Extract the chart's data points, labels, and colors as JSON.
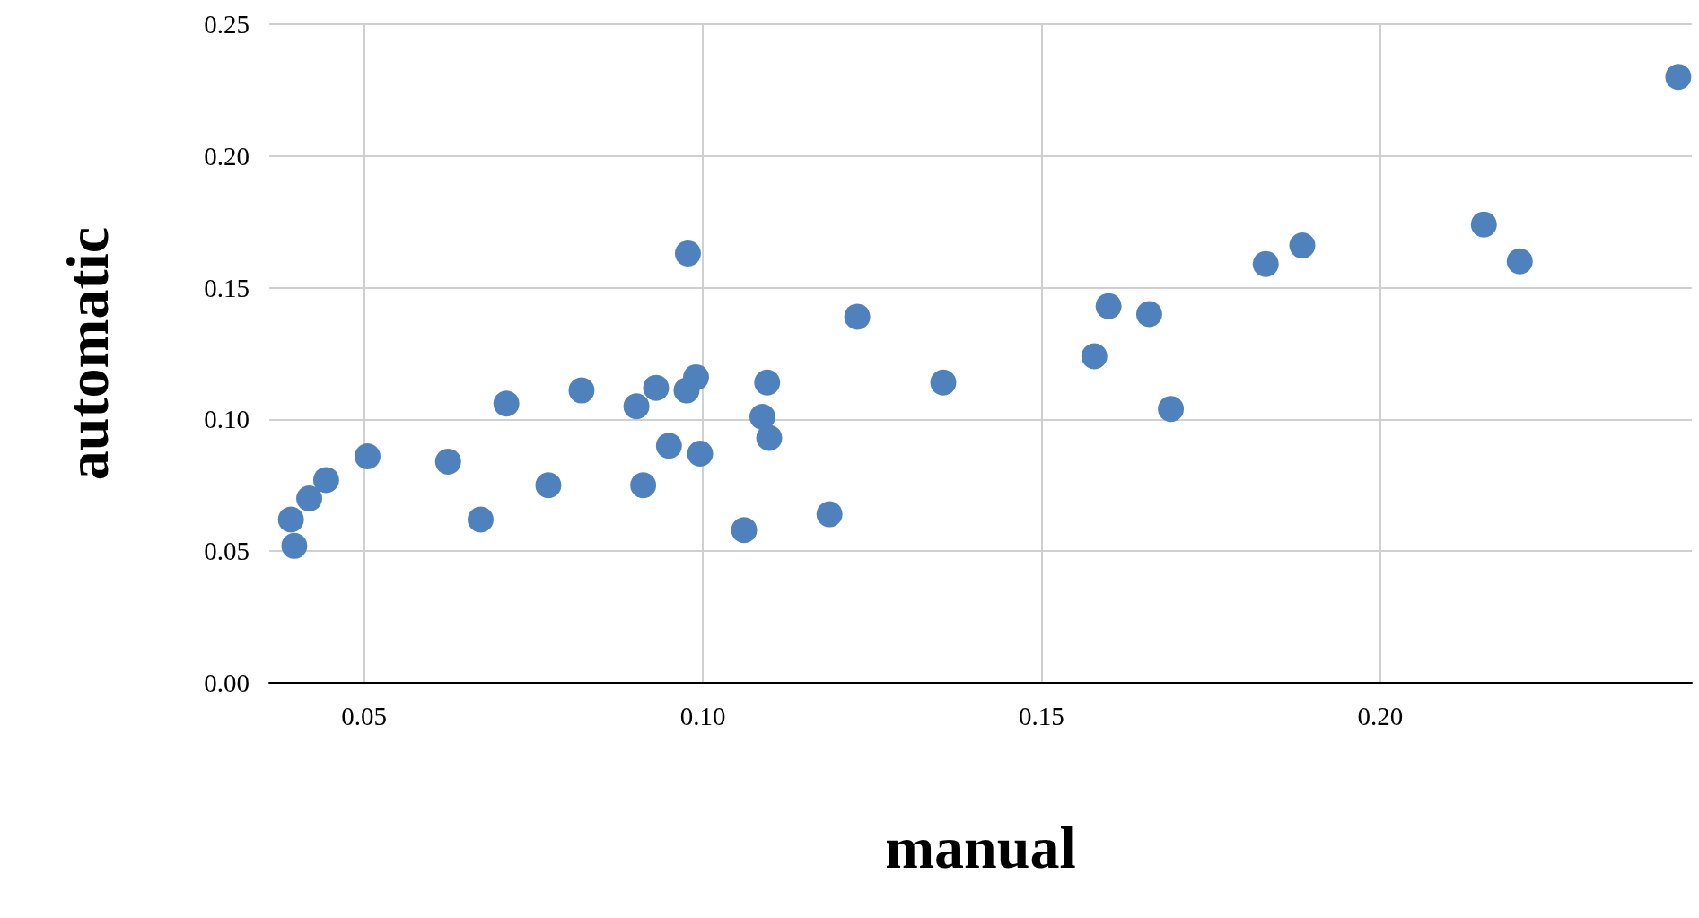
{
  "chart_data": {
    "type": "scatter",
    "xlabel": "manual",
    "ylabel": "automatic",
    "marker": "circle",
    "grid": true,
    "xlim": [
      0.036,
      0.246
    ],
    "ylim": [
      0,
      0.25
    ],
    "xticks": [
      {
        "value": 0.05,
        "label": "0.05"
      },
      {
        "value": 0.1,
        "label": "0.10"
      },
      {
        "value": 0.15,
        "label": "0.15"
      },
      {
        "value": 0.2,
        "label": "0.20"
      }
    ],
    "yticks": [
      {
        "value": 0,
        "label": "0.00"
      },
      {
        "value": 0.05,
        "label": "0.05"
      },
      {
        "value": 0.1,
        "label": "0.10"
      },
      {
        "value": 0.15,
        "label": "0.15"
      },
      {
        "value": 0.2,
        "label": "0.20"
      },
      {
        "value": 0.25,
        "label": "0.25"
      }
    ],
    "series": [
      {
        "color": "#4f81bd",
        "x": [
          0.0392,
          0.0397,
          0.0419,
          0.0444,
          0.0505,
          0.0624,
          0.0672,
          0.071,
          0.0772,
          0.0821,
          0.0902,
          0.0912,
          0.0931,
          0.095,
          0.0978,
          0.0976,
          0.099,
          0.0996,
          0.1061,
          0.1088,
          0.1095,
          0.1098,
          0.1187,
          0.1228,
          0.1355,
          0.1578,
          0.1599,
          0.1659,
          0.1691,
          0.1831,
          0.1885,
          0.2153,
          0.2206,
          0.244
        ],
        "values": [
          0.062,
          0.052,
          0.07,
          0.077,
          0.086,
          0.084,
          0.062,
          0.106,
          0.075,
          0.111,
          0.105,
          0.075,
          0.112,
          0.09,
          0.163,
          0.111,
          0.116,
          0.087,
          0.058,
          0.101,
          0.114,
          0.093,
          0.064,
          0.139,
          0.114,
          0.124,
          0.143,
          0.14,
          0.104,
          0.159,
          0.166,
          0.174,
          0.16,
          0.23
        ]
      }
    ]
  }
}
